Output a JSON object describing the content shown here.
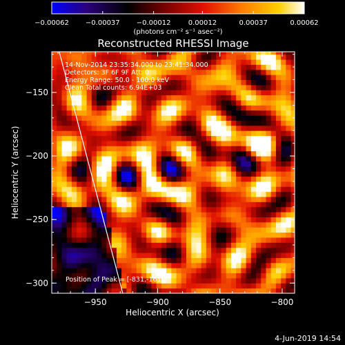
{
  "chart_data": {
    "type": "heatmap",
    "title": "Reconstructed RHESSI Image",
    "xlabel": "Heliocentric X (arcsec)",
    "ylabel": "Heliocentric Y (arcsec)",
    "xlim": [
      -985,
      -790
    ],
    "ylim": [
      -308,
      -118
    ],
    "x_ticks": [
      -950,
      -900,
      -850,
      -800
    ],
    "x_tick_labels": [
      "−950",
      "−900",
      "−850",
      "−800"
    ],
    "y_ticks": [
      -150,
      -200,
      -250,
      -300
    ],
    "y_tick_labels": [
      "−150",
      "−200",
      "−250",
      "−300"
    ],
    "colorbar": {
      "min": -0.00062,
      "max": 0.00062,
      "ticks": [
        -0.00062,
        -0.00037,
        -0.00012,
        0.00012,
        0.00037,
        0.00062
      ],
      "tick_labels": [
        "−0.00062",
        "−0.00037",
        "−0.00012",
        "0.00012",
        "0.00037",
        "0.00062"
      ],
      "units_label": "(photons cm⁻² s⁻¹ asec⁻²)",
      "colors": [
        "#0000ff",
        "#2a007a",
        "#000000",
        "#7a0000",
        "#e01000",
        "#ff7a00",
        "#ffd000",
        "#ffffff"
      ]
    },
    "annotations": [
      "14-Nov-2014 23:35:34.000 to 23:41:34.000",
      "Detectors: 3F 6F 9F  Att: 0",
      "Energy Range: 50.0 - 100.0 keV",
      "Clean    Total counts: 6.94E+03"
    ],
    "peak_label": "Position of Peak = [-831,-161]",
    "peak": {
      "x": -831,
      "y": -161
    },
    "limb_line": [
      {
        "x": -979,
        "y": -118
      },
      {
        "x": -928,
        "y": -308
      }
    ]
  },
  "footer": {
    "date": "4-Jun-2019 14:54"
  }
}
